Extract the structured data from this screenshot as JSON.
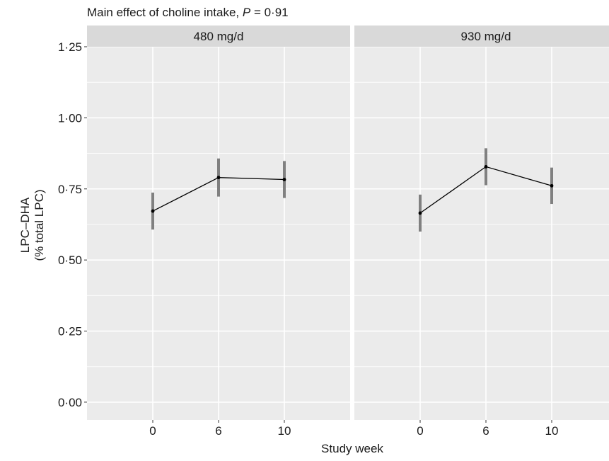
{
  "chart_data": {
    "type": "line",
    "title_prefix": "Main effect of choline intake, ",
    "title_p": "P",
    "title_value": " = 0·91",
    "xlabel": "Study week",
    "ylabel_line1": "LPC–DHA",
    "ylabel_line2": "(% total LPC)",
    "ylim": [
      -0.0625,
      1.25
    ],
    "yticks": [
      0.0,
      0.25,
      0.5,
      0.75,
      1.0,
      1.25
    ],
    "ytick_labels": [
      "0·00",
      "0·25",
      "0·50",
      "0·75",
      "1·00",
      "1·25"
    ],
    "categories": [
      "0",
      "6",
      "10"
    ],
    "panels": [
      {
        "name": "480 mg/d",
        "values": [
          0.672,
          0.79,
          0.783
        ],
        "lower": [
          0.607,
          0.723,
          0.718
        ],
        "upper": [
          0.737,
          0.857,
          0.848
        ]
      },
      {
        "name": "930 mg/d",
        "values": [
          0.665,
          0.828,
          0.761
        ],
        "lower": [
          0.6,
          0.763,
          0.697
        ],
        "upper": [
          0.73,
          0.893,
          0.825
        ]
      }
    ],
    "grid": true,
    "colors": {
      "panel_bg": "#ebebeb",
      "strip_bg": "#d9d9d9",
      "grid": "#ffffff",
      "line": "#000000",
      "errorbar": "#808080"
    }
  }
}
